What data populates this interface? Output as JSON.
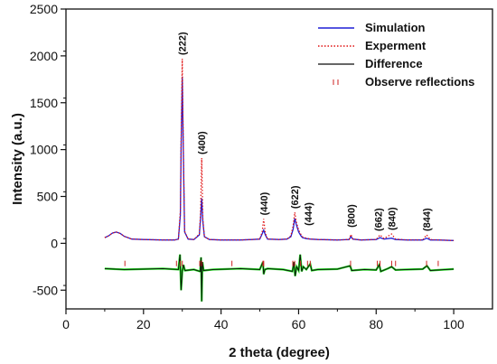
{
  "chart_data": {
    "type": "line",
    "xlabel": "2 theta (degree)",
    "ylabel": "Intensity (a.u.)",
    "xlim": [
      0,
      110
    ],
    "ylim": [
      -700,
      2500
    ],
    "x_ticks": [
      0,
      20,
      40,
      60,
      80,
      100
    ],
    "y_ticks": [
      -500,
      0,
      500,
      1000,
      1500,
      2000,
      2500
    ],
    "legend_position": "top-right",
    "colors": {
      "simulation": "#1f1fd6",
      "experiment": "#e01010",
      "difference": "#0a0a0a",
      "difference_trace": "#22dd22",
      "reflections": "#cc2222"
    },
    "peak_annotations": [
      {
        "label": "(222)",
        "x": 30.0,
        "y": 1970
      },
      {
        "label": "(400)",
        "x": 35.0,
        "y": 910
      },
      {
        "label": "(440)",
        "x": 51.0,
        "y": 260
      },
      {
        "label": "(622)",
        "x": 59.0,
        "y": 330
      },
      {
        "label": "(444)",
        "x": 62.5,
        "y": 150
      },
      {
        "label": "(800)",
        "x": 73.5,
        "y": 130
      },
      {
        "label": "(662)",
        "x": 80.5,
        "y": 90
      },
      {
        "label": "(840)",
        "x": 84.0,
        "y": 100
      },
      {
        "label": "(844)",
        "x": 93.0,
        "y": 90
      }
    ],
    "series": [
      {
        "name": "Simulation",
        "x": [
          10,
          11,
          12,
          13,
          14,
          15,
          17,
          20,
          25,
          28,
          29,
          29.5,
          29.7,
          30.0,
          30.3,
          30.6,
          31.5,
          33,
          34.4,
          34.7,
          35.0,
          35.3,
          35.7,
          37,
          40,
          45,
          48,
          50,
          50.6,
          51.0,
          51.4,
          52,
          55,
          57,
          58,
          58.6,
          59.0,
          59.4,
          60,
          60.6,
          61,
          62,
          63,
          65,
          70,
          73,
          73.5,
          74,
          76,
          80,
          81,
          82,
          84,
          85,
          88,
          92,
          93,
          94,
          96,
          100
        ],
        "y": [
          60,
          80,
          110,
          120,
          105,
          75,
          45,
          40,
          35,
          35,
          45,
          300,
          1000,
          1780,
          900,
          120,
          45,
          40,
          90,
          260,
          480,
          230,
          70,
          40,
          35,
          35,
          40,
          45,
          100,
          140,
          90,
          45,
          40,
          45,
          70,
          150,
          265,
          200,
          120,
          80,
          60,
          50,
          45,
          40,
          35,
          40,
          70,
          45,
          35,
          40,
          60,
          45,
          55,
          40,
          35,
          35,
          55,
          35,
          35,
          30
        ]
      },
      {
        "name": "Experment",
        "x": [
          10,
          11,
          12,
          13,
          14,
          15,
          17,
          20,
          25,
          28,
          29,
          29.5,
          29.7,
          30.0,
          30.3,
          30.6,
          31.5,
          33,
          34.4,
          34.7,
          35.0,
          35.3,
          35.7,
          37,
          40,
          45,
          48,
          50,
          50.6,
          51.0,
          51.4,
          52,
          55,
          57,
          58,
          58.6,
          59.0,
          59.4,
          60,
          60.6,
          61,
          62,
          63,
          65,
          70,
          73,
          73.5,
          74,
          76,
          80,
          81,
          82,
          84,
          85,
          88,
          92,
          93,
          94,
          96,
          100
        ],
        "y": [
          60,
          80,
          110,
          120,
          105,
          75,
          45,
          40,
          35,
          35,
          45,
          350,
          1100,
          1970,
          950,
          130,
          45,
          40,
          100,
          320,
          910,
          260,
          70,
          40,
          35,
          35,
          40,
          45,
          120,
          260,
          110,
          45,
          40,
          45,
          80,
          190,
          330,
          230,
          140,
          95,
          70,
          55,
          45,
          40,
          35,
          40,
          95,
          45,
          35,
          40,
          90,
          50,
          100,
          45,
          35,
          35,
          90,
          40,
          35,
          30
        ]
      },
      {
        "name": "Difference",
        "x": [
          10,
          15,
          20,
          25,
          29,
          29.4,
          29.7,
          30.0,
          30.3,
          30.7,
          33,
          34.6,
          34.85,
          35.0,
          35.2,
          35.5,
          38,
          45,
          50,
          50.8,
          51.0,
          51.3,
          52,
          56,
          58.4,
          58.8,
          59.1,
          59.5,
          60.0,
          60.4,
          60.8,
          61.2,
          62,
          63,
          63.4,
          65,
          70,
          73.3,
          73.7,
          77,
          80,
          80.8,
          81.2,
          83,
          84,
          85,
          88,
          92,
          93.1,
          94,
          98,
          100
        ],
        "y": [
          -270,
          -280,
          -275,
          -270,
          -280,
          -120,
          -500,
          -300,
          -230,
          -290,
          -280,
          -300,
          -150,
          -620,
          -200,
          -290,
          -280,
          -270,
          -280,
          -200,
          -330,
          -280,
          -270,
          -280,
          -300,
          -200,
          -350,
          -250,
          -290,
          -120,
          -300,
          -250,
          -280,
          -220,
          -290,
          -280,
          -275,
          -240,
          -290,
          -280,
          -285,
          -230,
          -300,
          -270,
          -250,
          -285,
          -280,
          -275,
          -240,
          -290,
          -280,
          -275
        ]
      },
      {
        "name": "Observe reflections",
        "x": [
          15.2,
          28.5,
          29.5,
          30.0,
          34.5,
          35.0,
          42.8,
          50.8,
          51.0,
          58.5,
          59.0,
          60.5,
          62.3,
          63.0,
          73.4,
          80.3,
          81.0,
          84.0,
          85.0,
          93.0,
          96.0
        ],
        "y": [
          -215,
          -215,
          -215,
          -215,
          -215,
          -215,
          -215,
          -215,
          -215,
          -215,
          -215,
          -215,
          -215,
          -215,
          -215,
          -215,
          -215,
          -215,
          -215,
          -215,
          -215
        ]
      }
    ]
  }
}
